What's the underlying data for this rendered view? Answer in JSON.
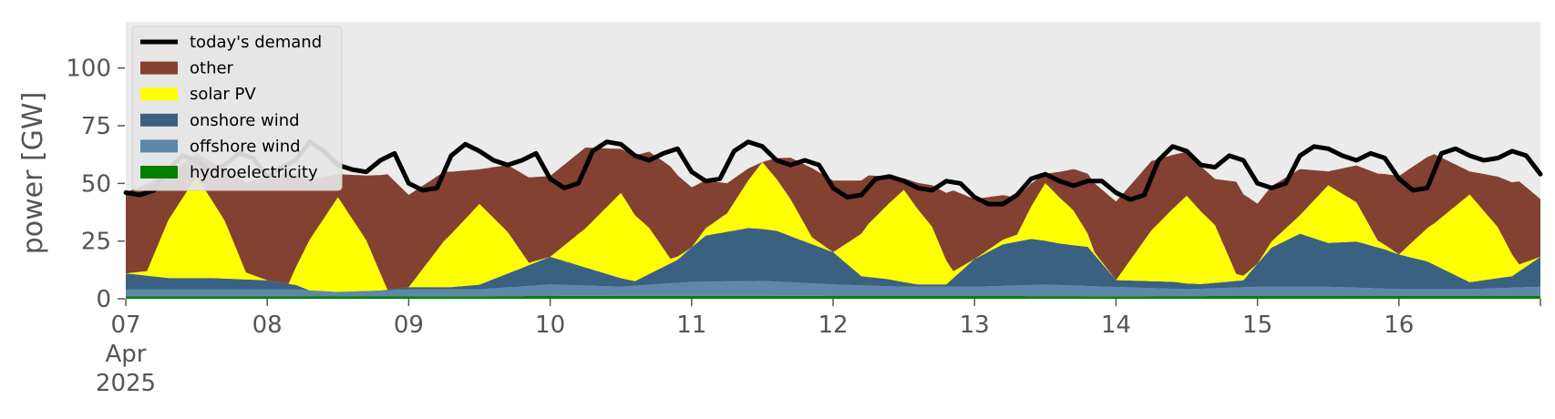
{
  "chart_data": {
    "type": "area",
    "ylabel": "power [GW]",
    "ylim": [
      0,
      120
    ],
    "yticks": [
      0,
      25,
      50,
      75,
      100
    ],
    "xlim": [
      0,
      10
    ],
    "xticks": [
      {
        "x": 0,
        "lines": [
          "07",
          "Apr",
          "2025"
        ]
      },
      {
        "x": 1,
        "lines": [
          "08"
        ]
      },
      {
        "x": 2,
        "lines": [
          "09"
        ]
      },
      {
        "x": 3,
        "lines": [
          "10"
        ]
      },
      {
        "x": 4,
        "lines": [
          "11"
        ]
      },
      {
        "x": 5,
        "lines": [
          "12"
        ]
      },
      {
        "x": 6,
        "lines": [
          "13"
        ]
      },
      {
        "x": 7,
        "lines": [
          "14"
        ]
      },
      {
        "x": 8,
        "lines": [
          "15"
        ]
      },
      {
        "x": 9,
        "lines": [
          "16"
        ]
      }
    ],
    "legend_position": "upper-left",
    "legend": [
      {
        "label": "today's demand",
        "kind": "line",
        "color": "#000000"
      },
      {
        "label": "other",
        "kind": "patch",
        "color": "#824131"
      },
      {
        "label": "solar PV",
        "kind": "patch",
        "color": "#ffff00"
      },
      {
        "label": "onshore wind",
        "kind": "patch",
        "color": "#3b6182"
      },
      {
        "label": "offshore wind",
        "kind": "patch",
        "color": "#5d88a8"
      },
      {
        "label": "hydroelectricity",
        "kind": "patch",
        "color": "#008000"
      }
    ],
    "background": "#ebebeb",
    "stack": [
      {
        "name": "hydroelectricity",
        "color": "#008000",
        "points": [
          [
            0,
            1.0
          ],
          [
            1,
            1.0
          ],
          [
            2,
            1.0
          ],
          [
            3,
            1.2
          ],
          [
            4,
            1.3
          ],
          [
            5,
            1.2
          ],
          [
            6,
            1.2
          ],
          [
            7,
            1.1
          ],
          [
            8,
            1.2
          ],
          [
            9,
            1.2
          ],
          [
            10,
            1.2
          ]
        ]
      },
      {
        "name": "offshore wind",
        "color": "#5d88a8",
        "points": [
          [
            0,
            3
          ],
          [
            0.5,
            3
          ],
          [
            1,
            3
          ],
          [
            1.2,
            3
          ],
          [
            1.5,
            2
          ],
          [
            2,
            3
          ],
          [
            2.5,
            3
          ],
          [
            3,
            5
          ],
          [
            3.5,
            4
          ],
          [
            4,
            6
          ],
          [
            4.5,
            6.5
          ],
          [
            5,
            5
          ],
          [
            5.5,
            4
          ],
          [
            6,
            4
          ],
          [
            6.5,
            5
          ],
          [
            7,
            4
          ],
          [
            7.5,
            3
          ],
          [
            8,
            4
          ],
          [
            8.5,
            4
          ],
          [
            9,
            3
          ],
          [
            9.5,
            3
          ],
          [
            10,
            4
          ]
        ]
      },
      {
        "name": "onshore wind",
        "color": "#3b6182",
        "points": [
          [
            0,
            7
          ],
          [
            0.3,
            5
          ],
          [
            0.6,
            5
          ],
          [
            1,
            4
          ],
          [
            1.2,
            2
          ],
          [
            1.3,
            0
          ],
          [
            1.6,
            0
          ],
          [
            1.8,
            0
          ],
          [
            2,
            1
          ],
          [
            2.3,
            1
          ],
          [
            2.5,
            2
          ],
          [
            2.7,
            6
          ],
          [
            3,
            12
          ],
          [
            3.3,
            7
          ],
          [
            3.6,
            2
          ],
          [
            3.9,
            10
          ],
          [
            4.1,
            20
          ],
          [
            4.4,
            23
          ],
          [
            4.6,
            22
          ],
          [
            4.8,
            18
          ],
          [
            5,
            14
          ],
          [
            5.2,
            4
          ],
          [
            5.4,
            3
          ],
          [
            5.6,
            1
          ],
          [
            5.8,
            1
          ],
          [
            6,
            12
          ],
          [
            6.2,
            18
          ],
          [
            6.4,
            20
          ],
          [
            6.6,
            18
          ],
          [
            6.8,
            17
          ],
          [
            7,
            3
          ],
          [
            7.2,
            3
          ],
          [
            7.4,
            3
          ],
          [
            7.6,
            2
          ],
          [
            7.9,
            3
          ],
          [
            8.1,
            17
          ],
          [
            8.3,
            23
          ],
          [
            8.5,
            19
          ],
          [
            8.7,
            20
          ],
          [
            8.9,
            17
          ],
          [
            9,
            15
          ],
          [
            9.2,
            12
          ],
          [
            9.5,
            3
          ],
          [
            9.8,
            5
          ],
          [
            10,
            13
          ]
        ]
      },
      {
        "name": "solar PV",
        "color": "#ffff00",
        "points": [
          [
            0,
            0
          ],
          [
            0.15,
            2
          ],
          [
            0.3,
            25
          ],
          [
            0.5,
            44
          ],
          [
            0.7,
            25
          ],
          [
            0.85,
            3
          ],
          [
            1,
            0
          ],
          [
            1.15,
            0
          ],
          [
            1.3,
            22
          ],
          [
            1.5,
            41
          ],
          [
            1.7,
            22
          ],
          [
            1.85,
            0
          ],
          [
            2,
            0
          ],
          [
            2.25,
            20
          ],
          [
            2.5,
            35
          ],
          [
            2.7,
            18
          ],
          [
            2.85,
            1
          ],
          [
            3,
            0
          ],
          [
            3.25,
            17
          ],
          [
            3.5,
            37
          ],
          [
            3.7,
            20
          ],
          [
            3.85,
            2
          ],
          [
            4,
            0
          ],
          [
            4.25,
            8
          ],
          [
            4.5,
            29
          ],
          [
            4.7,
            16
          ],
          [
            4.85,
            3
          ],
          [
            5,
            0
          ],
          [
            5.25,
            23
          ],
          [
            5.5,
            40
          ],
          [
            5.7,
            25
          ],
          [
            5.85,
            3
          ],
          [
            6,
            0
          ],
          [
            6.3,
            3
          ],
          [
            6.5,
            25
          ],
          [
            6.7,
            15
          ],
          [
            6.85,
            1
          ],
          [
            7,
            0
          ],
          [
            7.25,
            22
          ],
          [
            7.5,
            38
          ],
          [
            7.7,
            25
          ],
          [
            7.85,
            3
          ],
          [
            8,
            0
          ],
          [
            8.3,
            8
          ],
          [
            8.5,
            25
          ],
          [
            8.7,
            17
          ],
          [
            8.85,
            3
          ],
          [
            9,
            0
          ],
          [
            9.25,
            18
          ],
          [
            9.5,
            38
          ],
          [
            9.7,
            22
          ],
          [
            9.85,
            3
          ],
          [
            10,
            0
          ]
        ]
      },
      {
        "name": "other",
        "color": "#824131",
        "points": [
          [
            0,
            35
          ],
          [
            0.15,
            38
          ],
          [
            0.3,
            20
          ],
          [
            0.5,
            10
          ],
          [
            0.7,
            22
          ],
          [
            0.85,
            39
          ],
          [
            1,
            45
          ],
          [
            1.15,
            48
          ],
          [
            1.3,
            26
          ],
          [
            1.5,
            10
          ],
          [
            1.7,
            28
          ],
          [
            1.85,
            50
          ],
          [
            2,
            40
          ],
          [
            2.25,
            30
          ],
          [
            2.5,
            15
          ],
          [
            2.7,
            29
          ],
          [
            2.85,
            37
          ],
          [
            3,
            35
          ],
          [
            3.25,
            35
          ],
          [
            3.5,
            19
          ],
          [
            3.7,
            33
          ],
          [
            3.85,
            40
          ],
          [
            4,
            26
          ],
          [
            4.25,
            13
          ],
          [
            4.5,
            0
          ],
          [
            4.7,
            18
          ],
          [
            4.85,
            30
          ],
          [
            5,
            31
          ],
          [
            5.25,
            21
          ],
          [
            5.5,
            5
          ],
          [
            5.7,
            18
          ],
          [
            5.85,
            35
          ],
          [
            6,
            26
          ],
          [
            6.3,
            16
          ],
          [
            6.5,
            4
          ],
          [
            6.7,
            18
          ],
          [
            6.85,
            30
          ],
          [
            7,
            34
          ],
          [
            7.25,
            30
          ],
          [
            7.5,
            19
          ],
          [
            7.7,
            20
          ],
          [
            7.85,
            40
          ],
          [
            8,
            26
          ],
          [
            8.3,
            20
          ],
          [
            8.5,
            6
          ],
          [
            8.7,
            16
          ],
          [
            8.85,
            29
          ],
          [
            9,
            34
          ],
          [
            9.25,
            30
          ],
          [
            9.5,
            10
          ],
          [
            9.7,
            22
          ],
          [
            9.85,
            36
          ],
          [
            10,
            25
          ]
        ]
      }
    ],
    "demand": {
      "name": "today's demand",
      "color": "#000000",
      "points": [
        [
          0,
          46
        ],
        [
          0.1,
          45
        ],
        [
          0.2,
          47
        ],
        [
          0.3,
          56
        ],
        [
          0.4,
          62
        ],
        [
          0.5,
          60
        ],
        [
          0.6,
          55
        ],
        [
          0.7,
          58
        ],
        [
          0.8,
          63
        ],
        [
          0.9,
          61
        ],
        [
          1,
          53
        ],
        [
          1.1,
          57
        ],
        [
          1.2,
          60
        ],
        [
          1.3,
          68
        ],
        [
          1.4,
          64
        ],
        [
          1.5,
          58
        ],
        [
          1.6,
          56
        ],
        [
          1.7,
          55
        ],
        [
          1.8,
          60
        ],
        [
          1.9,
          63
        ],
        [
          2,
          50
        ],
        [
          2.1,
          47
        ],
        [
          2.2,
          48
        ],
        [
          2.3,
          62
        ],
        [
          2.4,
          67
        ],
        [
          2.5,
          64
        ],
        [
          2.6,
          60
        ],
        [
          2.7,
          58
        ],
        [
          2.8,
          60
        ],
        [
          2.9,
          63
        ],
        [
          3,
          52
        ],
        [
          3.1,
          48
        ],
        [
          3.2,
          50
        ],
        [
          3.3,
          64
        ],
        [
          3.4,
          68
        ],
        [
          3.5,
          67
        ],
        [
          3.6,
          62
        ],
        [
          3.7,
          60
        ],
        [
          3.8,
          63
        ],
        [
          3.9,
          65
        ],
        [
          4,
          55
        ],
        [
          4.1,
          51
        ],
        [
          4.2,
          52
        ],
        [
          4.3,
          64
        ],
        [
          4.4,
          68
        ],
        [
          4.5,
          66
        ],
        [
          4.6,
          60
        ],
        [
          4.7,
          58
        ],
        [
          4.8,
          60
        ],
        [
          4.9,
          58
        ],
        [
          5,
          48
        ],
        [
          5.1,
          44
        ],
        [
          5.2,
          45
        ],
        [
          5.3,
          52
        ],
        [
          5.4,
          53
        ],
        [
          5.5,
          51
        ],
        [
          5.6,
          48
        ],
        [
          5.7,
          47
        ],
        [
          5.8,
          51
        ],
        [
          5.9,
          50
        ],
        [
          6,
          44
        ],
        [
          6.1,
          41
        ],
        [
          6.2,
          41
        ],
        [
          6.3,
          45
        ],
        [
          6.4,
          52
        ],
        [
          6.5,
          54
        ],
        [
          6.6,
          51
        ],
        [
          6.7,
          49
        ],
        [
          6.8,
          51
        ],
        [
          6.9,
          51
        ],
        [
          7,
          46
        ],
        [
          7.1,
          43
        ],
        [
          7.2,
          45
        ],
        [
          7.3,
          60
        ],
        [
          7.4,
          66
        ],
        [
          7.5,
          64
        ],
        [
          7.6,
          58
        ],
        [
          7.7,
          57
        ],
        [
          7.8,
          62
        ],
        [
          7.9,
          60
        ],
        [
          8,
          50
        ],
        [
          8.1,
          48
        ],
        [
          8.2,
          50
        ],
        [
          8.3,
          62
        ],
        [
          8.4,
          66
        ],
        [
          8.5,
          65
        ],
        [
          8.6,
          62
        ],
        [
          8.7,
          60
        ],
        [
          8.8,
          63
        ],
        [
          8.9,
          61
        ],
        [
          9,
          52
        ],
        [
          9.1,
          47
        ],
        [
          9.2,
          48
        ],
        [
          9.3,
          63
        ],
        [
          9.4,
          65
        ],
        [
          9.5,
          62
        ],
        [
          9.6,
          60
        ],
        [
          9.7,
          61
        ],
        [
          9.8,
          64
        ],
        [
          9.9,
          62
        ],
        [
          10,
          54
        ]
      ]
    }
  }
}
